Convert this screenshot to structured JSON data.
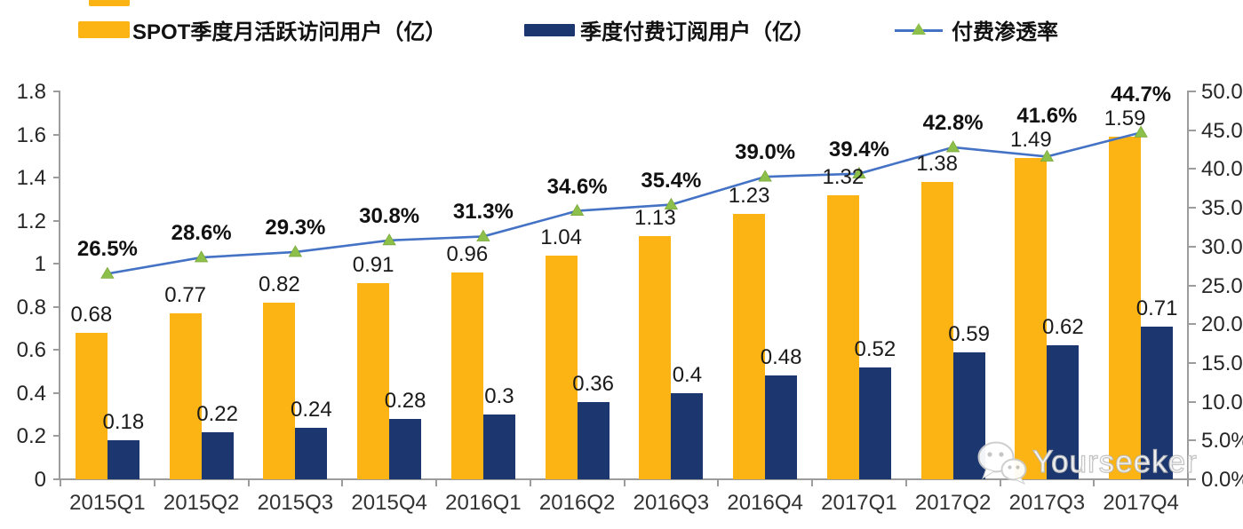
{
  "legend": {
    "items": [
      {
        "label": "SPOT季度月活跃访问用户（亿）",
        "color": "#FBB414"
      },
      {
        "label": "季度付费订阅用户（亿）",
        "color": "#1C376F"
      },
      {
        "label": "付费渗透率",
        "color": "#4472C4",
        "marker_color": "#8DC04B"
      }
    ]
  },
  "chart_data": {
    "type": "combo bar+line",
    "categories": [
      "2015Q1",
      "2015Q2",
      "2015Q3",
      "2015Q4",
      "2016Q1",
      "2016Q2",
      "2016Q3",
      "2016Q4",
      "2017Q1",
      "2017Q2",
      "2017Q3",
      "2017Q4"
    ],
    "series": [
      {
        "name": "SPOT季度月活跃访问用户（亿）",
        "type": "bar",
        "axis": "left",
        "color": "#FBB414",
        "values": [
          0.68,
          0.77,
          0.82,
          0.91,
          0.96,
          1.04,
          1.13,
          1.23,
          1.32,
          1.38,
          1.49,
          1.59
        ],
        "labels": [
          "0.68",
          "0.77",
          "0.82",
          "0.91",
          "0.96",
          "1.04",
          "1.13",
          "1.23",
          "1.32",
          "1.38",
          "1.49",
          "1.59"
        ]
      },
      {
        "name": "季度付费订阅用户（亿）",
        "type": "bar",
        "axis": "left",
        "color": "#1C376F",
        "values": [
          0.18,
          0.22,
          0.24,
          0.28,
          0.3,
          0.36,
          0.4,
          0.48,
          0.52,
          0.59,
          0.62,
          0.71
        ],
        "labels": [
          "0.18",
          "0.22",
          "0.24",
          "0.28",
          "0.3",
          "0.36",
          "0.4",
          "0.48",
          "0.52",
          "0.59",
          "0.62",
          "0.71"
        ]
      },
      {
        "name": "付费渗透率",
        "type": "line",
        "axis": "right",
        "color": "#4472C4",
        "marker": "triangle-up",
        "marker_color": "#8DC04B",
        "values": [
          26.5,
          28.6,
          29.3,
          30.8,
          31.3,
          34.6,
          35.4,
          39.0,
          39.4,
          42.8,
          41.6,
          44.7
        ],
        "labels": [
          "26.5%",
          "28.6%",
          "29.3%",
          "30.8%",
          "31.3%",
          "34.6%",
          "35.4%",
          "39.0%",
          "39.4%",
          "42.8%",
          "41.6%",
          "44.7%"
        ]
      }
    ],
    "left_axis": {
      "min": 0,
      "max": 1.8,
      "tick_labels": [
        "1.8",
        "1.6",
        "1.4",
        "1.2",
        "1",
        "0.8",
        "0.6",
        "0.4",
        "0.2",
        "0"
      ]
    },
    "right_axis": {
      "min": 0,
      "max": 50,
      "tick_labels": [
        "50.0%",
        "45.0%",
        "40.0%",
        "35.0%",
        "30.0%",
        "25.0%",
        "20.0%",
        "15.0%",
        "10.0%",
        "5.0%",
        "0.0%"
      ]
    },
    "grid": false,
    "legend_position": "top"
  },
  "watermark": {
    "text": "Yourseeker",
    "icon": "wechat-icon"
  }
}
